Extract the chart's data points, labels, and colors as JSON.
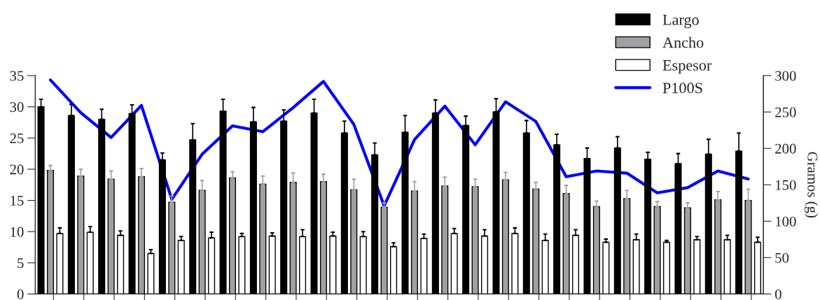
{
  "chart_data": {
    "type": "bar",
    "categories": [
      null,
      null,
      null,
      null,
      null,
      null,
      null,
      null,
      null,
      null,
      null,
      null,
      null,
      null,
      null,
      null,
      null,
      null,
      null,
      null,
      null,
      null,
      null,
      null
    ],
    "y2label": "Gramos (g)",
    "ylim": [
      0,
      35
    ],
    "yticks": [
      0,
      5,
      10,
      15,
      20,
      25,
      30,
      35
    ],
    "y2lim": [
      0,
      300
    ],
    "y2ticks": [
      0,
      50,
      100,
      150,
      200,
      250,
      300
    ],
    "legend": "top right",
    "grid": false,
    "series": [
      {
        "name": "Largo",
        "color": "#000000",
        "values": [
          30,
          28.6,
          28,
          28.9,
          21.5,
          24.7,
          29.3,
          27.6,
          27.7,
          29,
          25.8,
          22.3,
          25.9,
          29,
          27,
          29.2,
          25.8,
          23.9,
          21.7,
          23.4,
          21.6,
          20.9,
          22.4,
          22.9
        ],
        "errors": [
          [
            30,
            31.2
          ],
          [
            28.6,
            30.4
          ],
          [
            28,
            29.6
          ],
          [
            28.9,
            30.3
          ],
          [
            21.5,
            22.6
          ],
          [
            24.7,
            27.3
          ],
          [
            29.3,
            31.2
          ],
          [
            27.6,
            29.9
          ],
          [
            27.7,
            29.5
          ],
          [
            29,
            31.2
          ],
          [
            25.8,
            27.7
          ],
          [
            22.3,
            24.2
          ],
          [
            25.9,
            28.6
          ],
          [
            29,
            31.1
          ],
          [
            27,
            28.5
          ],
          [
            29.2,
            31.3
          ],
          [
            25.8,
            27.8
          ],
          [
            23.9,
            25.6
          ],
          [
            21.7,
            23.4
          ],
          [
            23.4,
            25.2
          ],
          [
            21.6,
            22.7
          ],
          [
            20.9,
            22.5
          ],
          [
            22.4,
            24.8
          ],
          [
            22.9,
            25.8
          ]
        ]
      },
      {
        "name": "Ancho",
        "color": "#a0a0a4",
        "values": [
          19.8,
          18.9,
          18.4,
          18.8,
          14.7,
          16.6,
          18.6,
          17.6,
          17.9,
          18,
          16.7,
          13.9,
          16.5,
          17.3,
          17.2,
          18.3,
          16.8,
          16.1,
          14,
          15.3,
          14,
          13.8,
          15.1,
          15
        ],
        "errors": [
          [
            19.8,
            20.6
          ],
          [
            18.9,
            20
          ],
          [
            18.4,
            19.7
          ],
          [
            18.8,
            20.1
          ],
          [
            14.7,
            15.7
          ],
          [
            16.6,
            18.2
          ],
          [
            18.6,
            19.6
          ],
          [
            17.6,
            18.9
          ],
          [
            17.9,
            19.4
          ],
          [
            18,
            19.2
          ],
          [
            16.7,
            18.4
          ],
          [
            13.9,
            14.6
          ],
          [
            16.5,
            18
          ],
          [
            17.3,
            18.7
          ],
          [
            17.2,
            18.4
          ],
          [
            18.3,
            19.5
          ],
          [
            16.8,
            17.9
          ],
          [
            16.1,
            17.4
          ],
          [
            14,
            14.9
          ],
          [
            15.3,
            16.6
          ],
          [
            14,
            14.8
          ],
          [
            13.8,
            14.6
          ],
          [
            15.1,
            16.4
          ],
          [
            15,
            16.8
          ]
        ]
      },
      {
        "name": "Espesor",
        "color": "#ffffff",
        "values": [
          9.7,
          9.9,
          9.4,
          6.5,
          8.6,
          9,
          9.2,
          9.3,
          9.2,
          9.3,
          9.2,
          7.6,
          8.9,
          9.7,
          9.3,
          9.7,
          8.6,
          9.4,
          8.3,
          8.7,
          8.3,
          8.7,
          8.7,
          8.3
        ],
        "errors": [
          [
            9.7,
            10.6
          ],
          [
            9.9,
            10.8
          ],
          [
            9.4,
            10.1
          ],
          [
            6.5,
            7.1
          ],
          [
            8.6,
            9.2
          ],
          [
            9,
            9.9
          ],
          [
            9.2,
            9.7
          ],
          [
            9.3,
            9.8
          ],
          [
            9.2,
            10.3
          ],
          [
            9.3,
            9.9
          ],
          [
            9.2,
            10
          ],
          [
            7.6,
            8.2
          ],
          [
            8.9,
            9.6
          ],
          [
            9.7,
            10.5
          ],
          [
            9.3,
            10.3
          ],
          [
            9.7,
            10.6
          ],
          [
            8.6,
            9.6
          ],
          [
            9.4,
            10.3
          ],
          [
            8.3,
            8.8
          ],
          [
            8.7,
            9.6
          ],
          [
            8.3,
            8.6
          ],
          [
            8.7,
            9.2
          ],
          [
            8.7,
            9.4
          ],
          [
            8.3,
            9.1
          ]
        ]
      },
      {
        "name": "P100S",
        "type": "line",
        "axis": "y2",
        "color": "#0000ff",
        "values": [
          294,
          249,
          215,
          259,
          130,
          192,
          231,
          223,
          256,
          292,
          233,
          121,
          212,
          258,
          205,
          264,
          237,
          161,
          169,
          166,
          139,
          146,
          169,
          158
        ]
      }
    ]
  }
}
